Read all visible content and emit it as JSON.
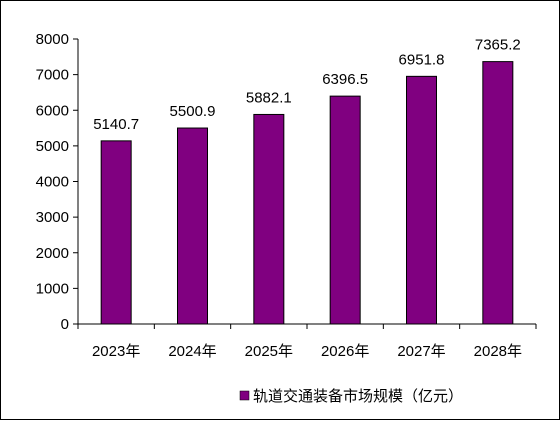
{
  "chart_data": {
    "type": "bar",
    "categories": [
      "2023年",
      "2024年",
      "2025年",
      "2026年",
      "2027年",
      "2028年"
    ],
    "series": [
      {
        "name": "轨道交通装备市场规模（亿元）",
        "values": [
          5140.7,
          5500.9,
          5882.1,
          6396.5,
          6951.8,
          7365.2
        ],
        "value_labels": [
          "5140.7",
          "5500.9",
          "5882.1",
          "6396.5",
          "6951.8",
          "7365.2"
        ],
        "color": "#800080"
      }
    ],
    "ylim": [
      0,
      8000
    ],
    "yticks": [
      0,
      1000,
      2000,
      3000,
      4000,
      5000,
      6000,
      7000,
      8000
    ],
    "grid": false,
    "legend_position": "bottom-right"
  }
}
